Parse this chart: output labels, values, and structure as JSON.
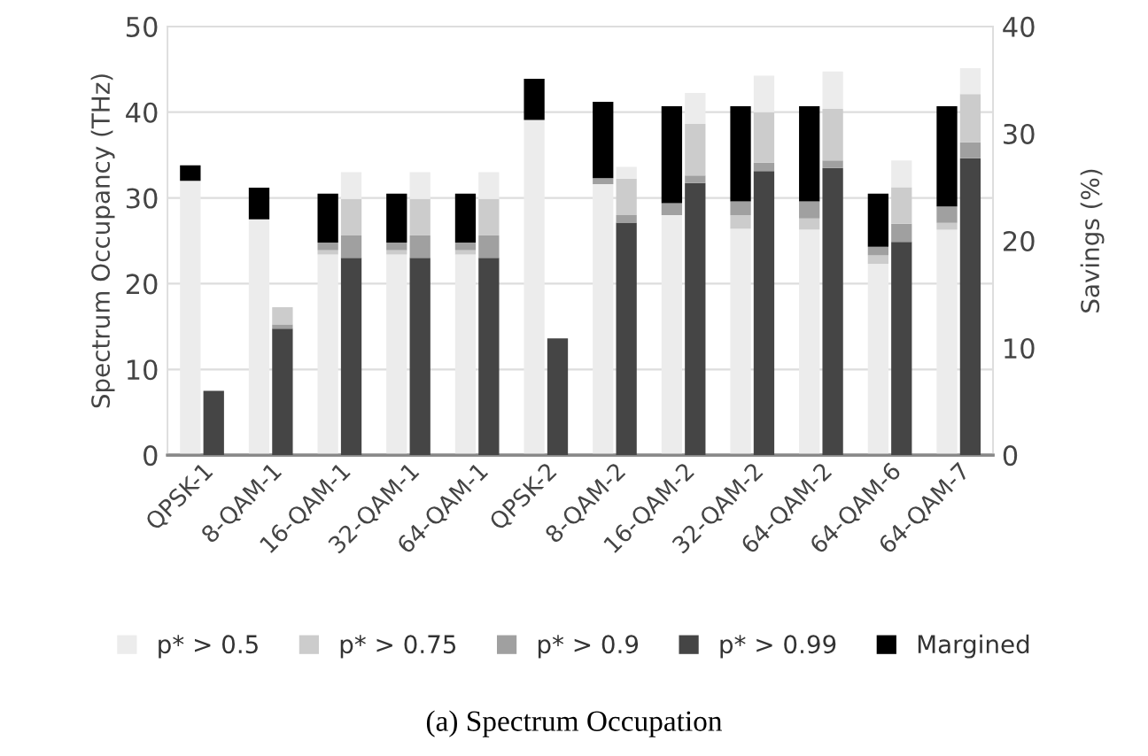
{
  "chart_data": {
    "type": "bar",
    "stacked": true,
    "ylabel": "Spectrum Occupancy (THz)",
    "y2label": "Savings (%)",
    "categories": [
      "QPSK-1",
      "8-QAM-1",
      "16-QAM-1",
      "32-QAM-1",
      "64-QAM-1",
      "QPSK-2",
      "8-QAM-2",
      "16-QAM-2",
      "32-QAM-2",
      "64-QAM-2",
      "64-QAM-6",
      "64-QAM-7"
    ],
    "series": [
      {
        "name": "p* > 0.5",
        "color": "#ececec",
        "values": [
          32.0,
          27.5,
          23.4,
          23.4,
          23.4,
          39.1,
          31.6,
          28.0,
          26.4,
          26.3,
          22.3,
          26.3
        ]
      },
      {
        "name": "p* > 0.75",
        "color": "#cccccc",
        "values": [
          0,
          0,
          0.5,
          0.5,
          0.5,
          0,
          0,
          0,
          1.6,
          1.3,
          1.0,
          0.8
        ]
      },
      {
        "name": "p* > 0.9",
        "color": "#a0a0a0",
        "values": [
          0,
          0,
          0.9,
          0.9,
          0.9,
          0,
          0.7,
          1.4,
          1.6,
          2.0,
          1.0,
          1.9
        ]
      },
      {
        "name": "p* > 0.99",
        "color": "#454545",
        "axis": "y2",
        "values": [
          6.0,
          11.8,
          18.4,
          18.4,
          18.4,
          10.9,
          21.7,
          25.4,
          26.5,
          26.8,
          19.9,
          27.7
        ]
      },
      {
        "name": "Margined",
        "color": "#000000",
        "values": [
          1.8,
          3.7,
          5.7,
          5.7,
          5.7,
          4.8,
          8.9,
          11.3,
          11.1,
          11.1,
          6.2,
          11.7
        ]
      },
      {
        "color": "#a0a0a0",
        "axis": "y2",
        "values": [
          0,
          0.4,
          2.1,
          2.1,
          2.1,
          0,
          0.7,
          0.7,
          0.8,
          0.7,
          1.7,
          1.5
        ]
      },
      {
        "color": "#cccccc",
        "axis": "y2",
        "values": [
          0,
          1.6,
          3.4,
          3.4,
          3.4,
          0,
          3.4,
          4.8,
          4.7,
          4.8,
          3.4,
          4.5
        ]
      },
      {
        "color": "#ececec",
        "axis": "y2",
        "values": [
          0,
          0,
          2.5,
          2.5,
          2.5,
          0,
          1.1,
          2.9,
          3.4,
          3.5,
          2.5,
          2.4
        ]
      }
    ],
    "ylim": [
      0,
      50
    ],
    "yticks": [
      0,
      10,
      20,
      30,
      40,
      50
    ],
    "y2lim": [
      0,
      40
    ],
    "y2ticks": [
      0,
      10,
      20,
      30,
      40
    ],
    "grid": "y",
    "legend": "bottom",
    "annotations": [
      "(a) Spectrum Occupation"
    ]
  }
}
